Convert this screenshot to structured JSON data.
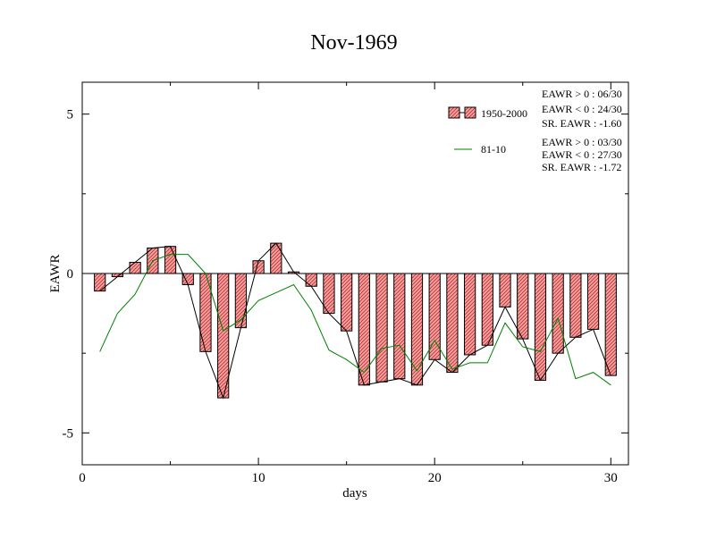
{
  "chart_data": {
    "type": "bar",
    "title": "Nov-1969",
    "xlabel": "days",
    "ylabel": "EAWR",
    "xlim": [
      0,
      31
    ],
    "ylim": [
      -6,
      6
    ],
    "x_ticks": [
      0,
      10,
      20,
      30
    ],
    "y_ticks": [
      5,
      0,
      -5
    ],
    "x_tick_labels": [
      "0",
      "10",
      "20",
      "30"
    ],
    "y_tick_labels": [
      "5",
      "0",
      "-5"
    ],
    "grid": false,
    "legend_position": "top-right",
    "x": [
      1,
      2,
      3,
      4,
      5,
      6,
      7,
      8,
      9,
      10,
      11,
      12,
      13,
      14,
      15,
      16,
      17,
      18,
      19,
      20,
      21,
      22,
      23,
      24,
      25,
      26,
      27,
      28,
      29,
      30
    ],
    "series": [
      {
        "name": "1950-2000",
        "render": "bar+line",
        "color": "#000000",
        "bar_fill": "#f4a0a0",
        "values": [
          -0.55,
          -0.1,
          0.35,
          0.8,
          0.85,
          -0.35,
          -2.45,
          -3.9,
          -1.7,
          0.4,
          0.95,
          0.05,
          -0.4,
          -1.25,
          -1.8,
          -3.5,
          -3.4,
          -3.3,
          -3.5,
          -2.7,
          -3.1,
          -2.55,
          -2.25,
          -1.05,
          -2.05,
          -3.35,
          -2.5,
          -2.0,
          -1.75,
          -3.2
        ]
      },
      {
        "name": "81-10",
        "render": "line",
        "color": "#008000",
        "values": [
          -2.45,
          -1.25,
          -0.65,
          0.4,
          0.6,
          0.6,
          0.0,
          -1.8,
          -1.45,
          -0.85,
          -0.6,
          -0.35,
          -1.15,
          -2.4,
          -2.7,
          -3.1,
          -2.35,
          -2.25,
          -3.05,
          -2.1,
          -3.0,
          -2.8,
          -2.8,
          -1.55,
          -2.3,
          -2.45,
          -1.4,
          -3.3,
          -3.1,
          -3.5
        ]
      }
    ],
    "annotations": {
      "group1": [
        "EAWR > 0 : 06/30",
        "EAWR < 0 : 24/30",
        "SR. EAWR : -1.60"
      ],
      "group2": [
        "EAWR > 0 : 03/30",
        "EAWR < 0 : 27/30",
        "SR. EAWR : -1.72"
      ]
    }
  }
}
